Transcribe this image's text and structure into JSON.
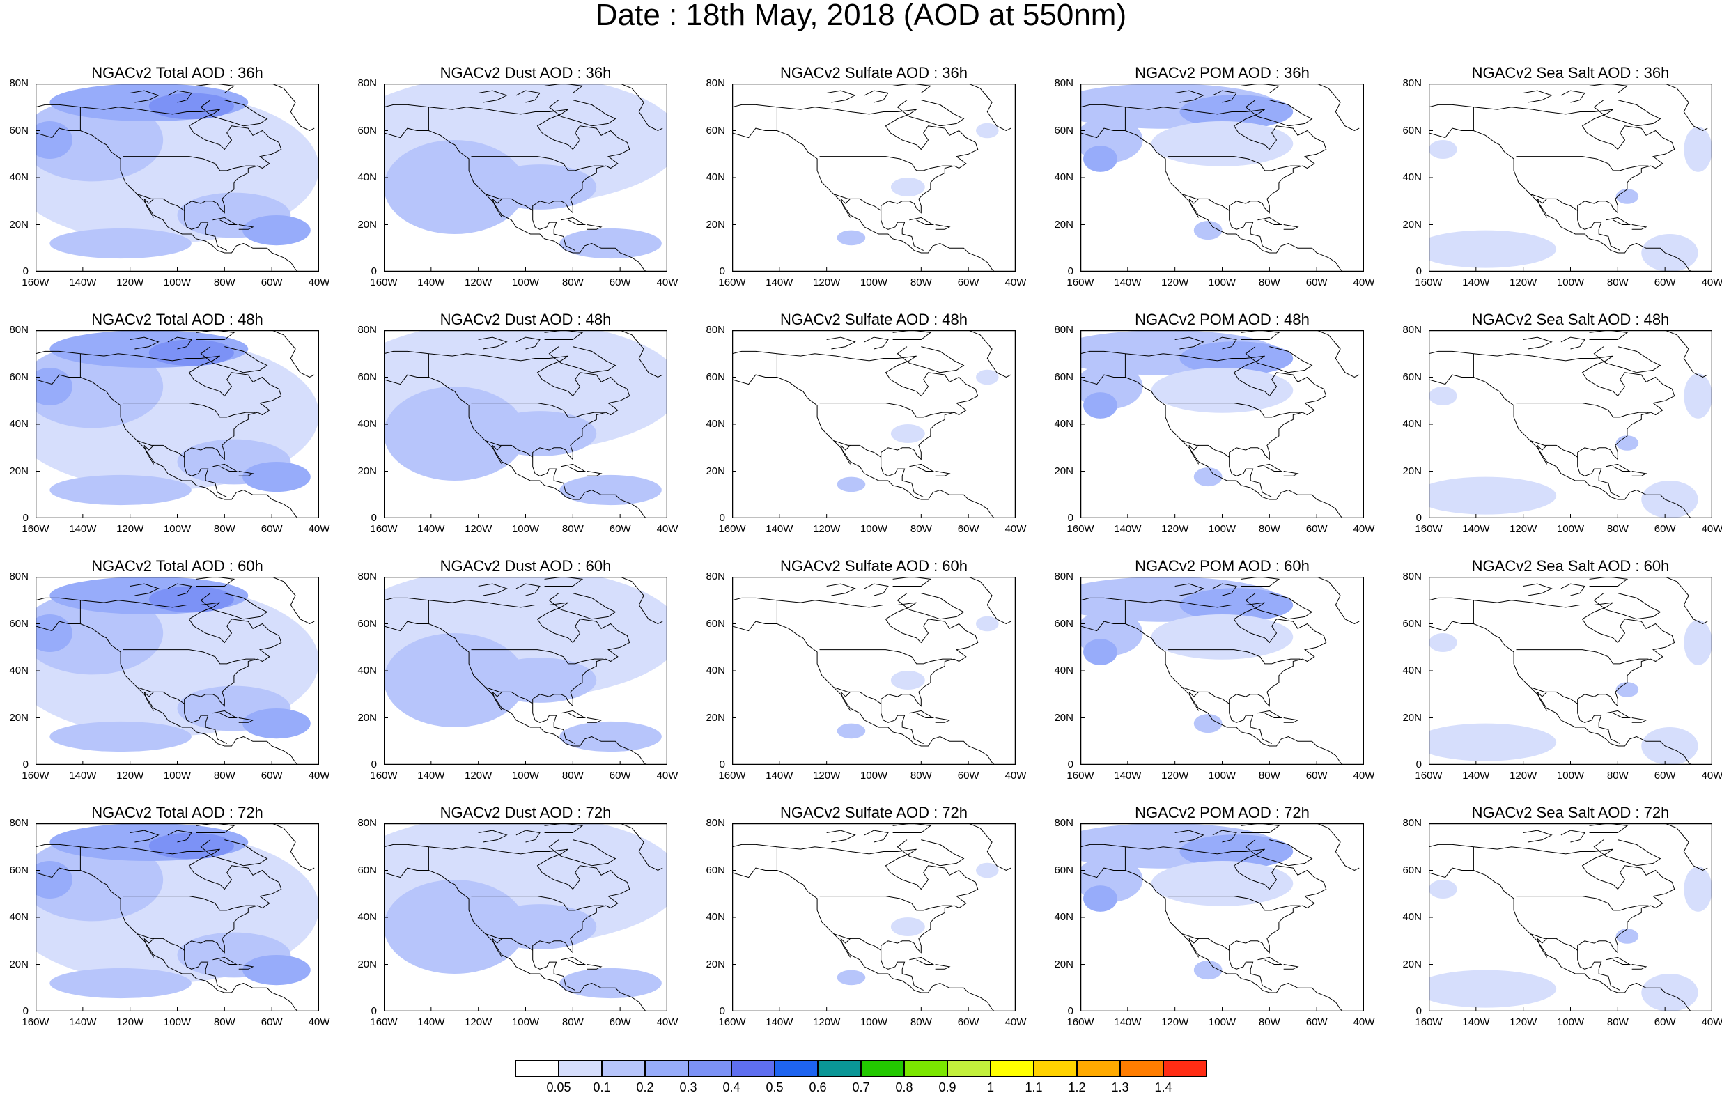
{
  "title": "Date : 18th May, 2018 (AOD at 550nm)",
  "lat_labels": [
    "80N",
    "60N",
    "40N",
    "20N",
    "0"
  ],
  "lon_labels": [
    "160W",
    "140W",
    "120W",
    "100W",
    "80W",
    "60W",
    "40W"
  ],
  "panels": [
    {
      "title": "NGACv2 Total AOD : 36h",
      "variable": "total",
      "hour": 36
    },
    {
      "title": "NGACv2 Dust AOD : 36h",
      "variable": "dust",
      "hour": 36
    },
    {
      "title": "NGACv2 Sulfate AOD : 36h",
      "variable": "sulfate",
      "hour": 36
    },
    {
      "title": "NGACv2 POM AOD : 36h",
      "variable": "pom",
      "hour": 36
    },
    {
      "title": "NGACv2 Sea Salt AOD : 36h",
      "variable": "seasalt",
      "hour": 36
    },
    {
      "title": "NGACv2 Total AOD : 48h",
      "variable": "total",
      "hour": 48
    },
    {
      "title": "NGACv2 Dust AOD : 48h",
      "variable": "dust",
      "hour": 48
    },
    {
      "title": "NGACv2 Sulfate AOD : 48h",
      "variable": "sulfate",
      "hour": 48
    },
    {
      "title": "NGACv2 POM AOD : 48h",
      "variable": "pom",
      "hour": 48
    },
    {
      "title": "NGACv2 Sea Salt AOD : 48h",
      "variable": "seasalt",
      "hour": 48
    },
    {
      "title": "NGACv2 Total AOD : 60h",
      "variable": "total",
      "hour": 60
    },
    {
      "title": "NGACv2 Dust AOD : 60h",
      "variable": "dust",
      "hour": 60
    },
    {
      "title": "NGACv2 Sulfate AOD : 60h",
      "variable": "sulfate",
      "hour": 60
    },
    {
      "title": "NGACv2 POM AOD : 60h",
      "variable": "pom",
      "hour": 60
    },
    {
      "title": "NGACv2 Sea Salt AOD : 60h",
      "variable": "seasalt",
      "hour": 60
    },
    {
      "title": "NGACv2 Total AOD : 72h",
      "variable": "total",
      "hour": 72
    },
    {
      "title": "NGACv2 Dust AOD : 72h",
      "variable": "dust",
      "hour": 72
    },
    {
      "title": "NGACv2 Sulfate AOD : 72h",
      "variable": "sulfate",
      "hour": 72
    },
    {
      "title": "NGACv2 POM AOD : 72h",
      "variable": "pom",
      "hour": 72
    },
    {
      "title": "NGACv2 Sea Salt  AOD : 72h",
      "variable": "seasalt",
      "hour": 72
    }
  ],
  "colorbar": {
    "colors": [
      "#ffffff",
      "#d6defc",
      "#b7c5fb",
      "#97acfa",
      "#7c92f6",
      "#5f6ff0",
      "#1e64f0",
      "#0a9696",
      "#23c800",
      "#7be600",
      "#c3f03c",
      "#ffff00",
      "#ffd200",
      "#ffaa00",
      "#ff7d00",
      "#ff2d14"
    ],
    "labels": [
      "0.05",
      "0.1",
      "0.2",
      "0.3",
      "0.4",
      "0.5",
      "0.6",
      "0.7",
      "0.8",
      "0.9",
      "1",
      "1.1",
      "1.2",
      "1.3",
      "1.4"
    ]
  }
}
